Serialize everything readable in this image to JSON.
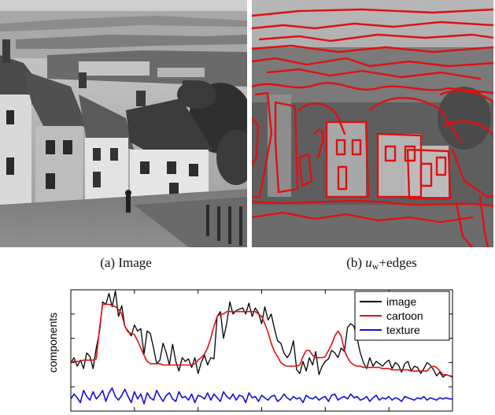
{
  "figure": {
    "panel_a": {
      "label_prefix": "(a)",
      "label_text": "Image"
    },
    "panel_b": {
      "label_prefix": "(b)",
      "label_math": "u",
      "label_sub": "w",
      "label_suffix": "+edges",
      "edge_color": "#e01010"
    }
  },
  "chart_data": {
    "type": "line",
    "title": "",
    "xlabel": "",
    "ylabel": "components",
    "grid": false,
    "legend_position": "top-right",
    "xlim": [
      0,
      120
    ],
    "ylim": [
      0,
      100
    ],
    "series": [
      {
        "name": "image",
        "color": "#000000",
        "values": [
          40,
          44,
          37,
          42,
          35,
          48,
          45,
          35,
          52,
          65,
          90,
          88,
          97,
          86,
          99,
          78,
          87,
          70,
          66,
          62,
          71,
          66,
          68,
          47,
          66,
          64,
          52,
          39,
          42,
          56,
          48,
          38,
          55,
          41,
          33,
          44,
          41,
          43,
          36,
          44,
          31,
          40,
          46,
          38,
          44,
          43,
          78,
          82,
          60,
          72,
          90,
          80,
          83,
          84,
          85,
          80,
          89,
          78,
          85,
          81,
          72,
          86,
          75,
          80,
          68,
          58,
          56,
          48,
          44,
          48,
          58,
          34,
          31,
          41,
          33,
          44,
          38,
          49,
          30,
          37,
          41,
          43,
          50,
          48,
          44,
          52,
          49,
          69,
          72,
          70,
          60,
          48,
          40,
          35,
          44,
          37,
          41,
          39,
          37,
          40,
          42,
          35,
          40,
          38,
          32,
          39,
          41,
          33,
          37,
          36,
          31,
          35,
          40,
          38,
          34,
          29,
          32,
          28,
          30,
          29,
          28
        ]
      },
      {
        "name": "cartoon",
        "color": "#e01010",
        "values": [
          41,
          41,
          41,
          41,
          42,
          42,
          42,
          42,
          43,
          68,
          88,
          88,
          88,
          87,
          86,
          84,
          80,
          70,
          65,
          64,
          63,
          58,
          52,
          46,
          41,
          39,
          39,
          39,
          39,
          38,
          38,
          38,
          38,
          38,
          38,
          38,
          38,
          38,
          38,
          39,
          42,
          44,
          47,
          52,
          60,
          70,
          78,
          80,
          80,
          82,
          82,
          82,
          82,
          82,
          82,
          82,
          82,
          82,
          82,
          80,
          78,
          72,
          65,
          56,
          49,
          45,
          40,
          38,
          37,
          37,
          37,
          37,
          38,
          45,
          50,
          50,
          46,
          44,
          44,
          44,
          45,
          50,
          55,
          62,
          66,
          62,
          50,
          44,
          40,
          38,
          37,
          37,
          36,
          36,
          36,
          36,
          36,
          36,
          35,
          35,
          35,
          34,
          34,
          34,
          34,
          34,
          34,
          33,
          33,
          33,
          33,
          33,
          33,
          36,
          37,
          36,
          33,
          30,
          30,
          29,
          29
        ]
      },
      {
        "name": "texture",
        "color": "#1010dd",
        "values": [
          10,
          14,
          11,
          7,
          17,
          12,
          9,
          16,
          10,
          13,
          17,
          8,
          15,
          19,
          12,
          9,
          13,
          18,
          12,
          7,
          16,
          10,
          14,
          6,
          15,
          11,
          9,
          17,
          12,
          8,
          13,
          15,
          10,
          8,
          16,
          11,
          12,
          9,
          14,
          7,
          13,
          12,
          10,
          15,
          9,
          14,
          11,
          8,
          16,
          12,
          10,
          14,
          9,
          13,
          12,
          7,
          15,
          11,
          12,
          8,
          13,
          11,
          9,
          12,
          13,
          8,
          10,
          14,
          11,
          9,
          12,
          10,
          11,
          7,
          13,
          11,
          10,
          12,
          9,
          11,
          12,
          8,
          13,
          14,
          9,
          11,
          12,
          10,
          14,
          11,
          12,
          9,
          10,
          12,
          8,
          11,
          13,
          9,
          11,
          10,
          12,
          9,
          11,
          10,
          8,
          12,
          11,
          10,
          9,
          11,
          10,
          12,
          9,
          11,
          10,
          9,
          11,
          10,
          11,
          10,
          10
        ]
      }
    ]
  }
}
